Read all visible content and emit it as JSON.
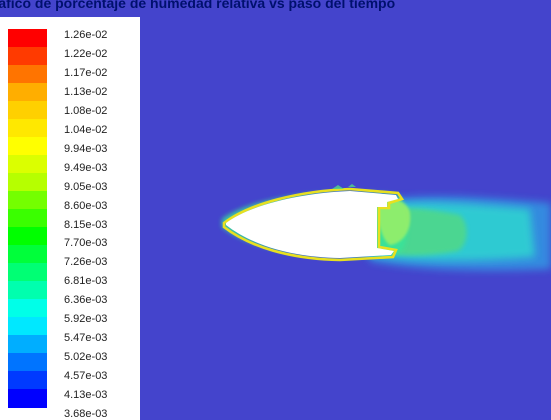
{
  "title": "Gráfico de porcentaje de humedad relativa vs paso del tiempo",
  "legend": {
    "labels": [
      "1.26e-02",
      "1.22e-02",
      "1.17e-02",
      "1.13e-02",
      "1.08e-02",
      "1.04e-02",
      "9.94e-03",
      "9.49e-03",
      "9.05e-03",
      "8.60e-03",
      "8.15e-03",
      "7.70e-03",
      "7.26e-03",
      "6.81e-03",
      "6.36e-03",
      "5.92e-03",
      "5.47e-03",
      "5.02e-03",
      "4.57e-03",
      "4.13e-03",
      "3.68e-03"
    ],
    "colors": [
      "#ff0000",
      "#ff3a00",
      "#ff7400",
      "#ffae00",
      "#ffd000",
      "#ffe800",
      "#ffff00",
      "#dbff00",
      "#b6ff00",
      "#74ff00",
      "#3aff00",
      "#00ff00",
      "#00ff3a",
      "#00ff74",
      "#00ffae",
      "#00ffe8",
      "#00e8ff",
      "#00aeff",
      "#0074ff",
      "#003aff",
      "#0000ff"
    ]
  },
  "colors": {
    "background": "#4444cc",
    "body": "#ffffff",
    "title": "#00106e"
  }
}
